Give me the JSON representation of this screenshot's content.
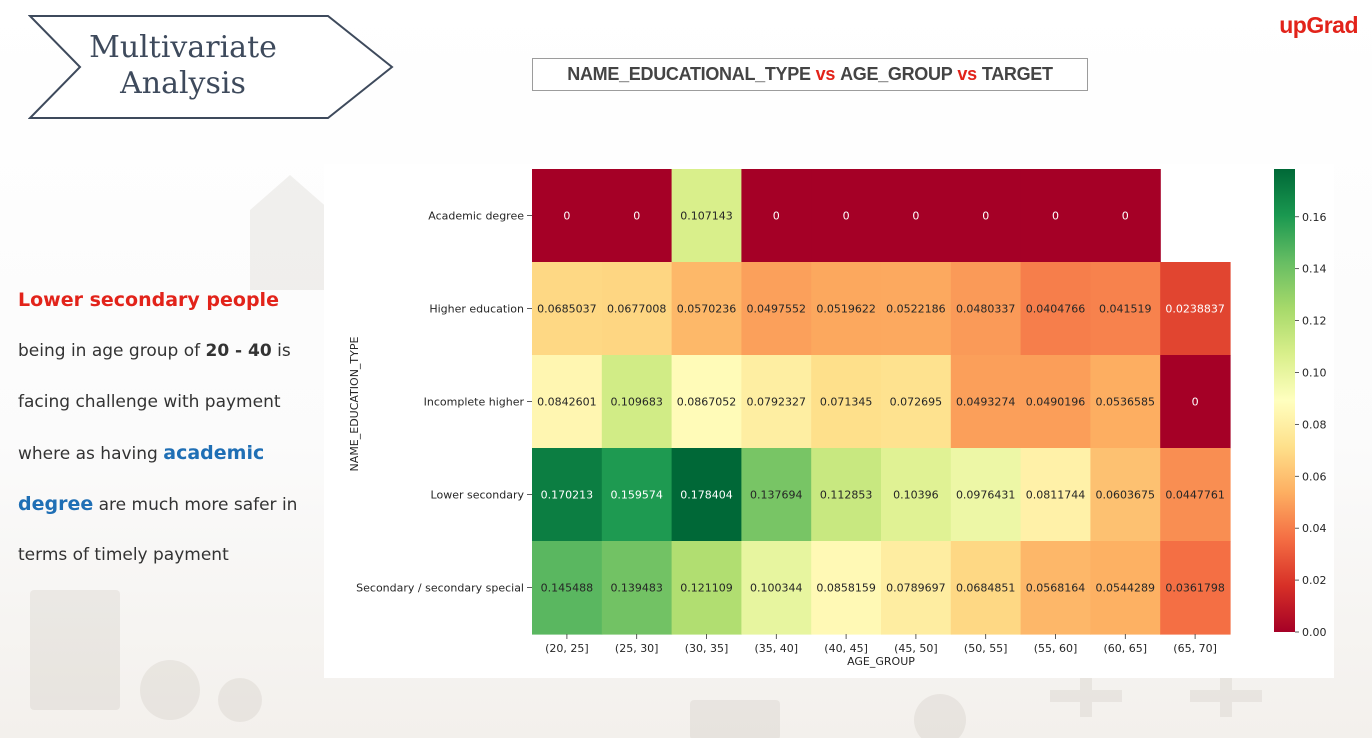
{
  "header": {
    "title_line1": "Multivariate",
    "title_line2": "Analysis",
    "brand": "upGrad"
  },
  "subtitle": {
    "part1": "NAME_EDUCATIONAL_TYPE",
    "vs1": "vs",
    "part2": "AGE_GROUP",
    "vs2": "vs",
    "part3": "TARGET"
  },
  "insight": {
    "lead": "Lower secondary people",
    "l2a": "being in age group of ",
    "l2b": "20 - 40",
    "l2c": " is",
    "l3": "facing challenge with payment",
    "l4a": "where as having ",
    "l4b": "academic",
    "l5a": "degree",
    "l5b": " are much more safer in",
    "l6": "terms of timely payment"
  },
  "colors": {
    "accent_red": "#e2231a",
    "accent_blue": "#1f6fb5",
    "banner_stroke": "#3e4a5c"
  },
  "chart_data": {
    "type": "heatmap",
    "colormap": "RdYlGn",
    "xlabel": "AGE_GROUP",
    "ylabel": "NAME_EDUCATION_TYPE",
    "x_categories": [
      "(20, 25]",
      "(25, 30]",
      "(30, 35]",
      "(35, 40]",
      "(40, 45]",
      "(45, 50]",
      "(50, 55]",
      "(55, 60]",
      "(60, 65]",
      "(65, 70]"
    ],
    "y_categories": [
      "Academic degree",
      "Higher education",
      "Incomplete higher",
      "Lower secondary",
      "Secondary / secondary special"
    ],
    "values": [
      [
        0,
        0,
        0.107143,
        0,
        0,
        0,
        0,
        0,
        0,
        null
      ],
      [
        0.0685037,
        0.0677008,
        0.0570236,
        0.0497552,
        0.0519622,
        0.0522186,
        0.0480337,
        0.0404766,
        0.041519,
        0.0238837
      ],
      [
        0.0842601,
        0.109683,
        0.0867052,
        0.0792327,
        0.071345,
        0.072695,
        0.0493274,
        0.0490196,
        0.0536585,
        0
      ],
      [
        0.170213,
        0.159574,
        0.178404,
        0.137694,
        0.112853,
        0.10396,
        0.0976431,
        0.0811744,
        0.0603675,
        0.0447761
      ],
      [
        0.145488,
        0.139483,
        0.121109,
        0.100344,
        0.0858159,
        0.0789697,
        0.0684851,
        0.0568164,
        0.0544289,
        0.0361798
      ]
    ],
    "labels": [
      [
        "0",
        "0",
        "0.107143",
        "0",
        "0",
        "0",
        "0",
        "0",
        "0",
        ""
      ],
      [
        "0.0685037",
        "0.0677008",
        "0.0570236",
        "0.0497552",
        "0.0519622",
        "0.0522186",
        "0.0480337",
        "0.0404766",
        "0.041519",
        "0.0238837"
      ],
      [
        "0.0842601",
        "0.109683",
        "0.0867052",
        "0.0792327",
        "0.071345",
        "0.072695",
        "0.0493274",
        "0.0490196",
        "0.0536585",
        "0"
      ],
      [
        "0.170213",
        "0.159574",
        "0.178404",
        "0.137694",
        "0.112853",
        "0.10396",
        "0.0976431",
        "0.0811744",
        "0.0603675",
        "0.0447761"
      ],
      [
        "0.145488",
        "0.139483",
        "0.121109",
        "0.100344",
        "0.0858159",
        "0.0789697",
        "0.0684851",
        "0.0568164",
        "0.0544289",
        "0.0361798"
      ]
    ],
    "colorbar": {
      "min": 0,
      "max": 0.178404,
      "ticks": [
        "0.00",
        "0.02",
        "0.04",
        "0.06",
        "0.08",
        "0.10",
        "0.12",
        "0.14",
        "0.16"
      ]
    }
  }
}
